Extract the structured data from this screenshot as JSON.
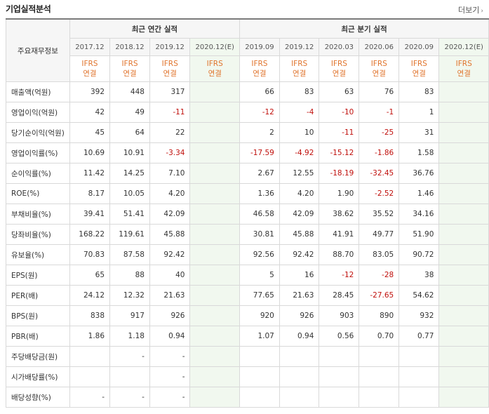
{
  "section_title": "기업실적분석",
  "more_label": "더보기",
  "row_header": "주요재무정보",
  "annual_header": "최근 연간 실적",
  "quarter_header": "최근 분기 실적",
  "annual_periods": [
    "2017.12",
    "2018.12",
    "2019.12",
    "2020.12(E)"
  ],
  "quarter_periods": [
    "2019.09",
    "2019.12",
    "2020.03",
    "2020.06",
    "2020.09",
    "2020.12(E)"
  ],
  "basis_line1": "IFRS",
  "basis_line2": "연결",
  "rows": [
    {
      "label": "매출액(억원)",
      "annual": [
        "392",
        "448",
        "317",
        ""
      ],
      "quarter": [
        "66",
        "83",
        "63",
        "76",
        "83",
        ""
      ]
    },
    {
      "label": "영업이익(억원)",
      "annual": [
        "42",
        "49",
        "-11",
        ""
      ],
      "quarter": [
        "-12",
        "-4",
        "-10",
        "-1",
        "1",
        ""
      ]
    },
    {
      "label": "당기순이익(억원)",
      "annual": [
        "45",
        "64",
        "22",
        ""
      ],
      "quarter": [
        "2",
        "10",
        "-11",
        "-25",
        "31",
        ""
      ]
    },
    {
      "label": "영업이익률(%)",
      "annual": [
        "10.69",
        "10.91",
        "-3.34",
        ""
      ],
      "quarter": [
        "-17.59",
        "-4.92",
        "-15.12",
        "-1.86",
        "1.58",
        ""
      ]
    },
    {
      "label": "순이익률(%)",
      "annual": [
        "11.42",
        "14.25",
        "7.10",
        ""
      ],
      "quarter": [
        "2.67",
        "12.55",
        "-18.19",
        "-32.45",
        "36.76",
        ""
      ]
    },
    {
      "label": "ROE(%)",
      "annual": [
        "8.17",
        "10.05",
        "4.20",
        ""
      ],
      "quarter": [
        "1.36",
        "4.20",
        "1.90",
        "-2.52",
        "1.46",
        ""
      ]
    },
    {
      "label": "부채비율(%)",
      "annual": [
        "39.41",
        "51.41",
        "42.09",
        ""
      ],
      "quarter": [
        "46.58",
        "42.09",
        "38.62",
        "35.52",
        "34.16",
        ""
      ]
    },
    {
      "label": "당좌비율(%)",
      "annual": [
        "168.22",
        "119.61",
        "45.88",
        ""
      ],
      "quarter": [
        "30.81",
        "45.88",
        "41.91",
        "49.77",
        "51.90",
        ""
      ]
    },
    {
      "label": "유보율(%)",
      "annual": [
        "70.83",
        "87.58",
        "92.42",
        ""
      ],
      "quarter": [
        "92.56",
        "92.42",
        "88.70",
        "83.05",
        "90.72",
        ""
      ]
    },
    {
      "label": "EPS(원)",
      "annual": [
        "65",
        "88",
        "40",
        ""
      ],
      "quarter": [
        "5",
        "16",
        "-12",
        "-28",
        "38",
        ""
      ]
    },
    {
      "label": "PER(배)",
      "annual": [
        "24.12",
        "12.32",
        "21.63",
        ""
      ],
      "quarter": [
        "77.65",
        "21.63",
        "28.45",
        "-27.65",
        "54.62",
        ""
      ]
    },
    {
      "label": "BPS(원)",
      "annual": [
        "838",
        "917",
        "926",
        ""
      ],
      "quarter": [
        "920",
        "926",
        "903",
        "890",
        "932",
        ""
      ]
    },
    {
      "label": "PBR(배)",
      "annual": [
        "1.86",
        "1.18",
        "0.94",
        ""
      ],
      "quarter": [
        "1.07",
        "0.94",
        "0.56",
        "0.70",
        "0.77",
        ""
      ]
    },
    {
      "label": "주당배당금(원)",
      "annual": [
        "",
        "-",
        "-",
        ""
      ],
      "quarter": [
        "",
        "",
        "",
        "",
        "",
        ""
      ]
    },
    {
      "label": "시가배당률(%)",
      "annual": [
        "",
        "",
        "-",
        ""
      ],
      "quarter": [
        "",
        "",
        "",
        "",
        "",
        ""
      ]
    },
    {
      "label": "배당성향(%)",
      "annual": [
        "-",
        "-",
        "-",
        ""
      ],
      "quarter": [
        "",
        "",
        "",
        "",
        "",
        ""
      ]
    }
  ]
}
